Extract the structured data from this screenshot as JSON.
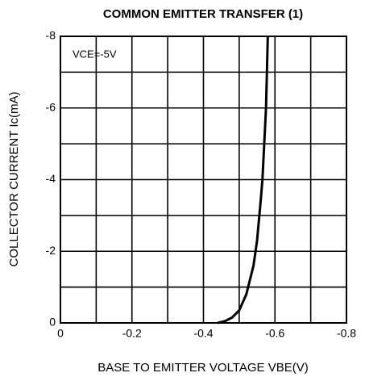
{
  "chart_data": {
    "type": "line",
    "title": "COMMON EMITTER TRANSFER (1)",
    "xlabel": "BASE TO EMITTER VOLTAGE  VBE(V)",
    "ylabel": "COLLECTOR CURRENT  Ic(mA)",
    "annotation": "VCE=-5V",
    "xlim": [
      0,
      -0.8
    ],
    "ylim": [
      0,
      -8
    ],
    "xticks": [
      0,
      -0.2,
      -0.4,
      -0.6,
      -0.8
    ],
    "yticks": [
      0,
      -2,
      -4,
      -6,
      -8
    ],
    "x_minor_ticks": [
      -0.1,
      -0.3,
      -0.5,
      -0.7
    ],
    "y_minor_ticks": [
      -1,
      -3,
      -5,
      -7,
      -1
    ],
    "grid": true,
    "series": [
      {
        "color": "#000000",
        "x": [
          -0.44,
          -0.46,
          -0.48,
          -0.5,
          -0.52,
          -0.54,
          -0.55,
          -0.56,
          -0.565,
          -0.575,
          -0.58
        ],
        "values": [
          0,
          -0.05,
          -0.15,
          -0.35,
          -0.8,
          -1.6,
          -2.3,
          -3.4,
          -4,
          -6,
          -8
        ]
      }
    ]
  }
}
